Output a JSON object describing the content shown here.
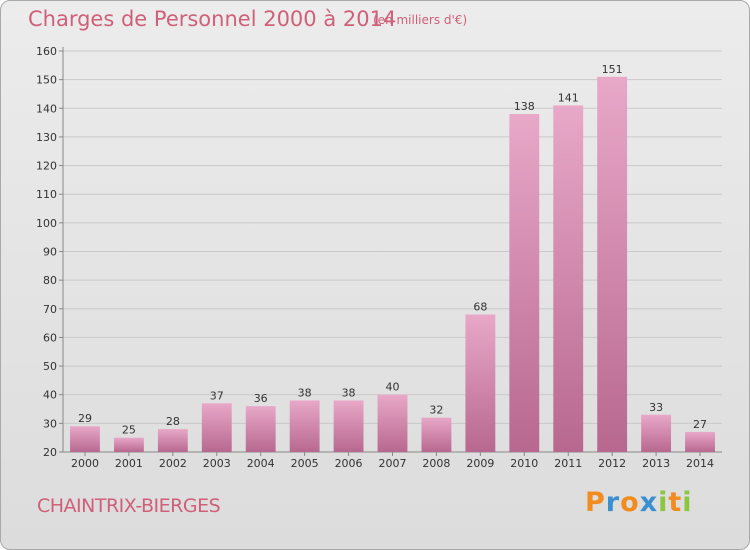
{
  "chart": {
    "title": "Charges de Personnel 2000 à 2014",
    "subtitle": "(en milliers d'€)",
    "commune": "CHAINTRIX-BIERGES"
  },
  "brand": {
    "letters": [
      "P",
      "r",
      "o",
      "x",
      "i",
      "t",
      "i"
    ],
    "colors": [
      "#f28c1e",
      "#3b8fd0",
      "#f28c1e",
      "#3b8fd0",
      "#8cc63f",
      "#f28c1e",
      "#8cc63f"
    ]
  },
  "colors": {
    "bar_light": "#e8a8c8",
    "bar_dark": "#b8688f",
    "title": "#d0607a",
    "grid": "#c9c9c9",
    "text": "#333333"
  },
  "chart_data": {
    "type": "bar",
    "categories": [
      "2000",
      "2001",
      "2002",
      "2003",
      "2004",
      "2005",
      "2006",
      "2007",
      "2008",
      "2009",
      "2010",
      "2011",
      "2012",
      "2013",
      "2014"
    ],
    "values": [
      29,
      25,
      28,
      37,
      36,
      38,
      38,
      40,
      32,
      68,
      138,
      141,
      151,
      33,
      27
    ],
    "yticks": [
      20,
      30,
      40,
      50,
      60,
      70,
      80,
      90,
      100,
      110,
      120,
      130,
      140,
      150,
      160
    ],
    "ylim": [
      20,
      160
    ],
    "grid": true
  }
}
